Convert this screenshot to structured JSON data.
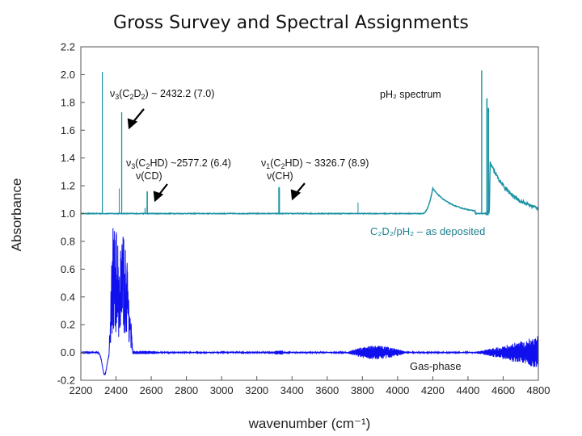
{
  "title": "Gross Survey and Spectral Assignments",
  "chart_data": {
    "type": "line",
    "xlabel": "wavenumber (cm⁻¹)",
    "ylabel": "Absorbance",
    "xlim": [
      2200,
      4800
    ],
    "ylim": [
      -0.2,
      2.2
    ],
    "x_ticks": [
      2200,
      2400,
      2600,
      2800,
      3000,
      3200,
      3400,
      3600,
      3800,
      4000,
      4200,
      4400,
      4600,
      4800
    ],
    "y_ticks": [
      "-0.2",
      "0.0",
      "0.2",
      "0.4",
      "0.6",
      "0.8",
      "1.0",
      "1.2",
      "1.4",
      "1.6",
      "1.8",
      "2.0",
      "2.2"
    ],
    "grid": false,
    "series": [
      {
        "name": "C2D2/pH2 – as deposited",
        "color": "#1b93a3",
        "baseline": 1.0,
        "peaks": [
          {
            "x": 2322,
            "y": 2.02,
            "w": 1.2
          },
          {
            "x": 2432,
            "y": 1.73,
            "w": 1.3
          },
          {
            "x": 2418,
            "y": 1.18,
            "w": 1.0
          },
          {
            "x": 2577,
            "y": 1.16,
            "w": 1.6
          },
          {
            "x": 2565,
            "y": 1.04,
            "w": 1.2
          },
          {
            "x": 3327,
            "y": 1.19,
            "w": 2.0
          },
          {
            "x": 3775,
            "y": 1.08,
            "w": 1.0
          },
          {
            "x": 4478,
            "y": 2.03,
            "w": 1.4
          },
          {
            "x": 4508,
            "y": 1.83,
            "w": 1.6
          },
          {
            "x": 4516,
            "y": 1.76,
            "w": 1.6
          }
        ],
        "bands": [
          {
            "start": 4140,
            "peak": 4200,
            "end": 4440,
            "y": 1.18
          },
          {
            "start": 4520,
            "peak": 4525,
            "end": 4800,
            "y": 1.37
          }
        ]
      },
      {
        "name": "Gas-phase",
        "color": "#1010ee",
        "baseline": 0.0,
        "envelope": [
          {
            "x": 2380,
            "y": 0.95
          },
          {
            "x": 2400,
            "y": 0.9
          },
          {
            "x": 2418,
            "y": 0.72
          },
          {
            "x": 2440,
            "y": 0.86
          },
          {
            "x": 2460,
            "y": 0.74
          },
          {
            "x": 2480,
            "y": 0.35
          }
        ],
        "dip": [
          {
            "x": 2320,
            "y": -0.16
          },
          {
            "x": 2350,
            "y": -0.12
          }
        ],
        "noise_bands": [
          {
            "start": 3700,
            "end": 4060,
            "amp": 0.05
          },
          {
            "start": 4400,
            "end": 4800,
            "amp": 0.12
          }
        ]
      }
    ],
    "annotations": {
      "v3_c2d2": "2432.2 (7.0)",
      "v3_c2hd": "2577.2 (6.4)",
      "v_cd": "ν(CD)",
      "v1_c2hd": "3326.7 (8.9)",
      "v_ch": "ν(CH)",
      "ph2_spectrum": "pH₂ spectrum",
      "as_deposited": "C₂D₂/pH₂ – as deposited",
      "gas_phase": "Gas-phase"
    }
  }
}
